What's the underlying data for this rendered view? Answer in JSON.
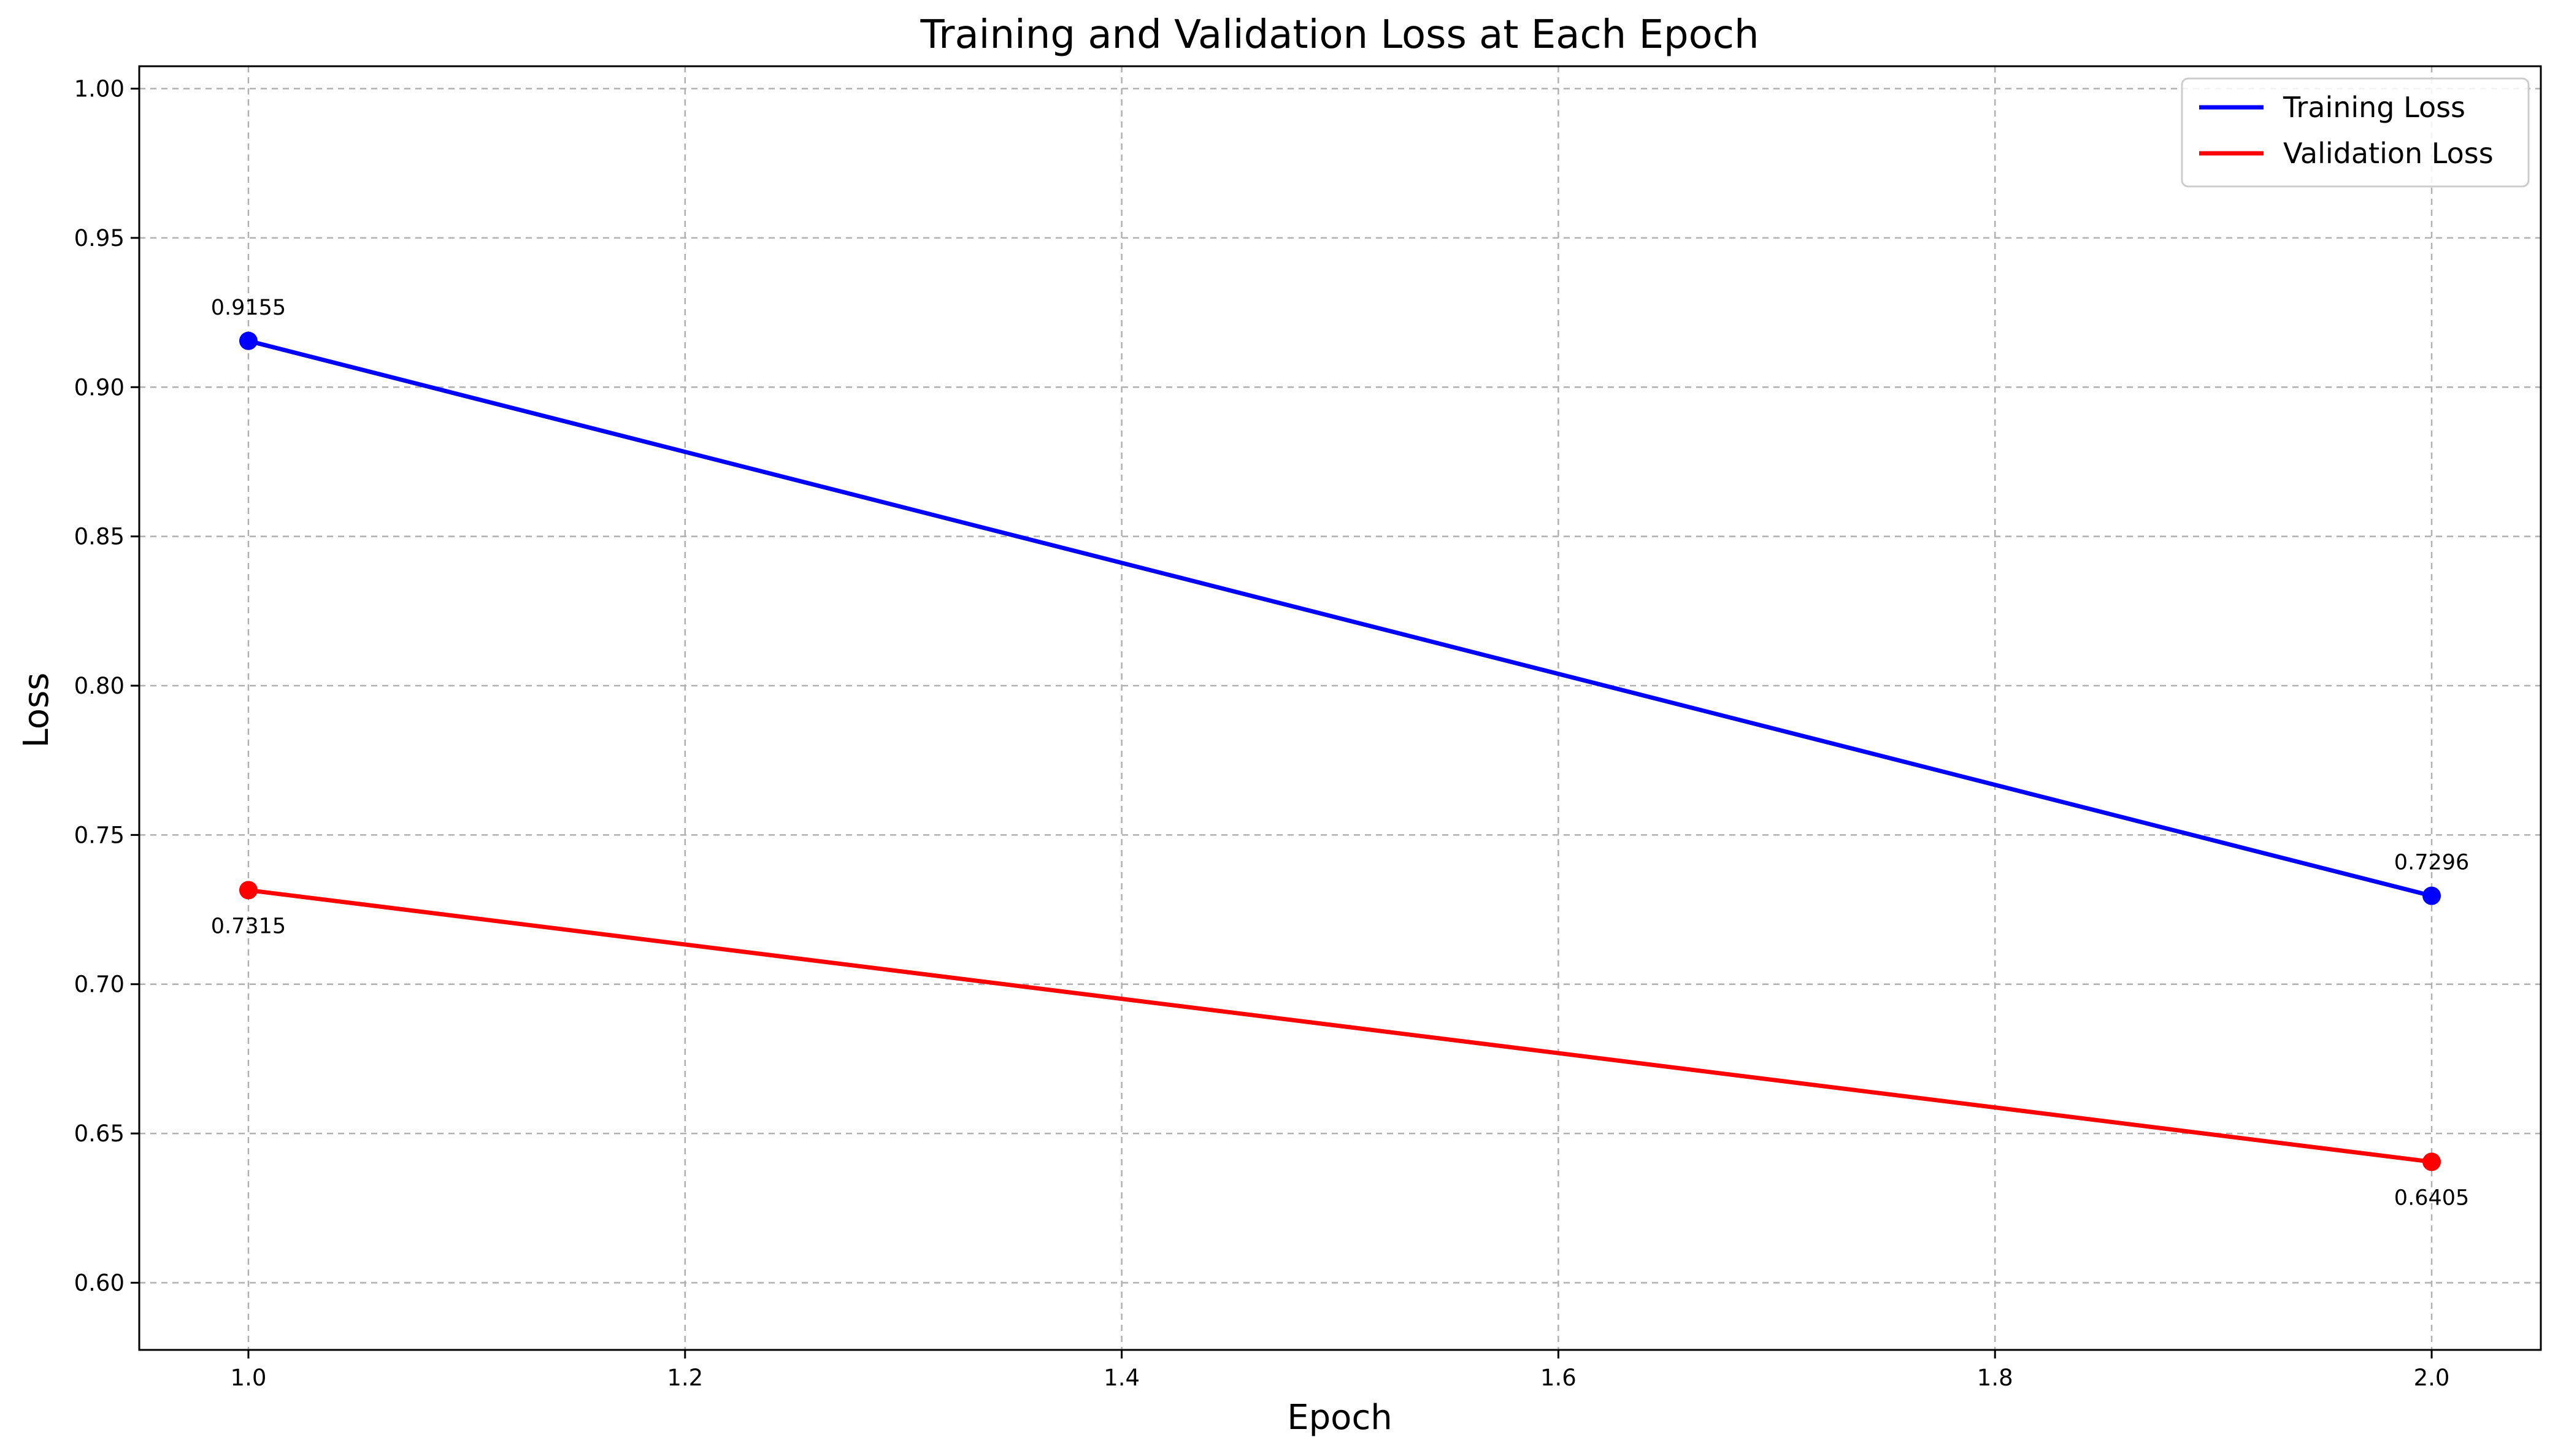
{
  "chart_data": {
    "type": "line",
    "title": "Training and Validation Loss at Each Epoch",
    "xlabel": "Epoch",
    "ylabel": "Loss",
    "xlim": [
      0.95,
      2.05
    ],
    "ylim": [
      0.5775,
      1.0075
    ],
    "x_ticks": [
      "1.0",
      "1.2",
      "1.4",
      "1.6",
      "1.8",
      "2.0"
    ],
    "y_ticks": [
      "0.60",
      "0.65",
      "0.70",
      "0.75",
      "0.80",
      "0.85",
      "0.90",
      "0.95",
      "1.00"
    ],
    "grid": true,
    "legend_position": "top-right",
    "x": [
      1.0,
      2.0
    ],
    "series": [
      {
        "name": "Training Loss",
        "color": "#0000ff",
        "values": [
          0.9155,
          0.7296
        ],
        "labels": [
          "0.9155",
          "0.7296"
        ],
        "label_position": "above"
      },
      {
        "name": "Validation Loss",
        "color": "#ff0000",
        "values": [
          0.7315,
          0.6405
        ],
        "labels": [
          "0.7315",
          "0.6405"
        ],
        "label_position": "below"
      }
    ]
  }
}
